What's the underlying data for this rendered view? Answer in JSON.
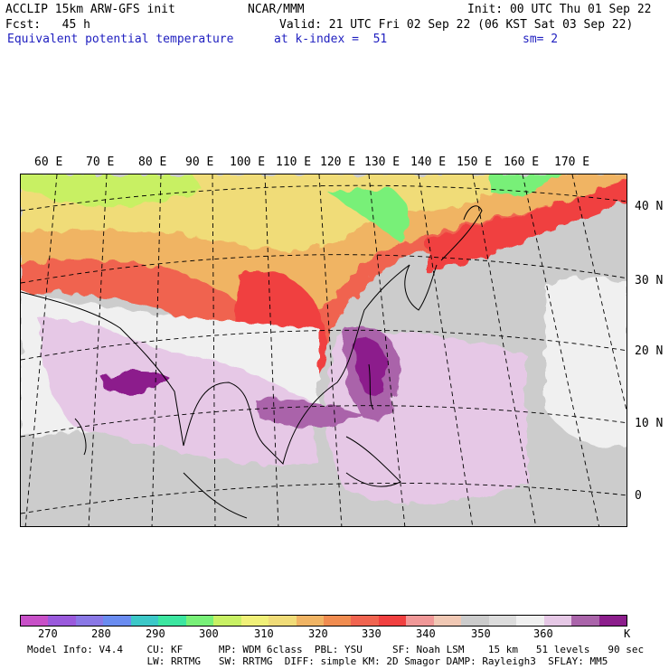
{
  "header": {
    "line1_left": "ACCLIP 15km ARW-GFS init",
    "line1_center": "NCAR/MMM",
    "line1_right": "Init: 00 UTC Thu 01 Sep 22",
    "line2_left": "Fcst:   45 h",
    "line2_right": "Valid: 21 UTC Fri 02 Sep 22 (06 KST Sat 03 Sep 22)",
    "line3_left": "Equivalent potential temperature",
    "line3_center": "at k-index =  51",
    "line3_right": "sm= 2"
  },
  "lon_labels": [
    "60 E",
    "70 E",
    "80 E",
    "90 E",
    "100 E",
    "110 E",
    "120 E",
    "130 E",
    "140 E",
    "150 E",
    "160 E",
    "170 E"
  ],
  "lat_labels": [
    "40 N",
    "30 N",
    "20 N",
    "10 N",
    "0"
  ],
  "colorbar": {
    "colors": [
      "#c850c8",
      "#9a5adc",
      "#8a78e6",
      "#6a8cf0",
      "#3cc8c8",
      "#3ce6a0",
      "#78f078",
      "#c8f064",
      "#f0f078",
      "#f0dc78",
      "#f0b464",
      "#f08c50",
      "#f06450",
      "#f04040",
      "#f09898",
      "#f0c8b4",
      "#cccccc",
      "#dcdcdc",
      "#f0f0f0",
      "#e6c8e6",
      "#aa64aa",
      "#8c1e8c"
    ],
    "labels": [
      "270",
      "280",
      "290",
      "300",
      "310",
      "320",
      "330",
      "340",
      "350",
      "360",
      "K"
    ]
  },
  "footer": {
    "line1": "Model Info: V4.4    CU: KF      MP: WDM 6class  PBL: YSU     SF: Noah LSM    15 km   51 levels   90 sec",
    "line2": "                    LW: RRTMG   SW: RRTMG  DIFF: simple KM: 2D Smagor DAMP: Rayleigh3  SFLAY: MM5"
  }
}
